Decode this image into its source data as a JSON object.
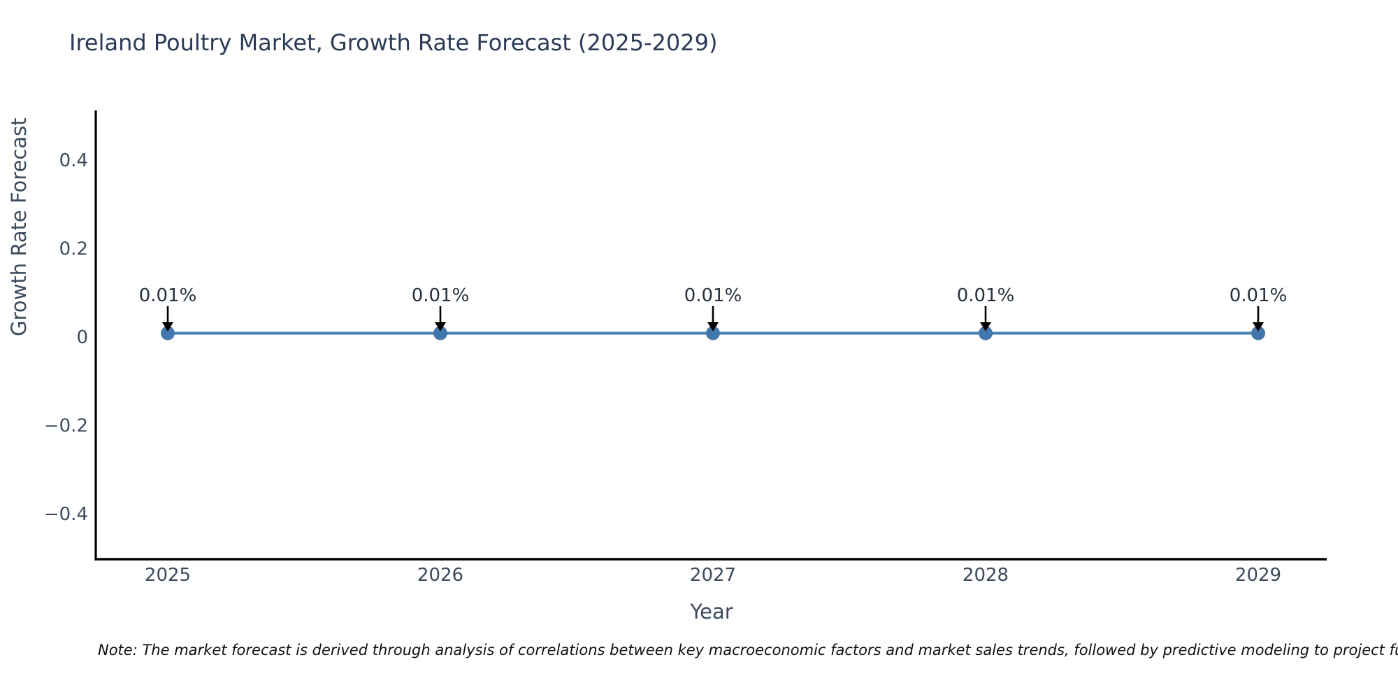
{
  "note": "Note: The market forecast is derived through analysis of correlations between key macroeconomic factors and market sales trends, followed by predictive modeling to project future sales",
  "chart_data": {
    "type": "line",
    "title": "Ireland Poultry Market, Growth Rate Forecast (2025-2029)",
    "xlabel": "Year",
    "ylabel": "Growth Rate Forecast",
    "x": [
      2025,
      2026,
      2027,
      2028,
      2029
    ],
    "series": [
      {
        "name": "Growth Rate Forecast",
        "values": [
          0.01,
          0.01,
          0.01,
          0.01,
          0.01
        ],
        "point_labels": [
          "0.01%",
          "0.01%",
          "0.01%",
          "0.01%",
          "0.01%"
        ]
      }
    ],
    "xticks": [
      "2025",
      "2026",
      "2027",
      "2028",
      "2029"
    ],
    "yticks": [
      {
        "label": "0.4",
        "value": 0.4
      },
      {
        "label": "0.2",
        "value": 0.2
      },
      {
        "label": "0",
        "value": 0.0
      },
      {
        "label": "−0.2",
        "value": -0.2
      },
      {
        "label": "−0.4",
        "value": -0.4
      }
    ],
    "ylim": [
      -0.5,
      0.51
    ],
    "grid": false,
    "legend_position": "none",
    "line_color": "#4682b4",
    "marker_color": "#4177ad",
    "arrow_color": "#000000",
    "spine_color": "#000000",
    "tick_label_color": "#3d4a5c",
    "annotation_color": "#26303d"
  }
}
